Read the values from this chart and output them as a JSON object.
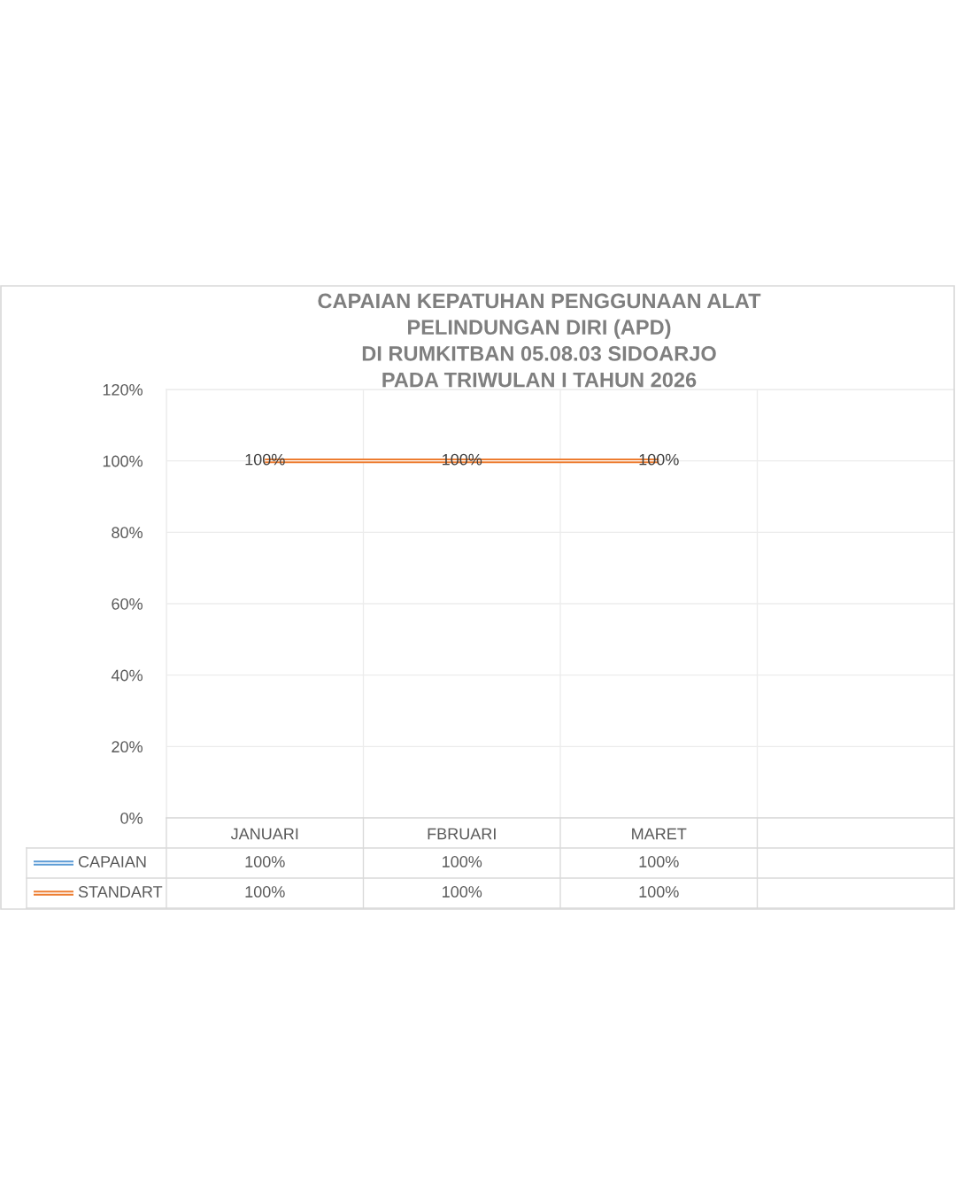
{
  "chart_data": {
    "type": "line",
    "title": "CAPAIAN KEPATUHAN PENGGUNAAN ALAT\nPELINDUNGAN DIRI (APD)\nDI RUMKITBAN 05.08.03 SIDOARJO\nPADA TRIWULAN I TAHUN 2026",
    "categories": [
      "JANUARI",
      "FBRUARI",
      "MARET",
      null
    ],
    "series": [
      {
        "name": "CAPAIAN",
        "color": "#5b9bd5",
        "values": [
          null,
          null,
          null,
          null
        ],
        "value_labels": [
          "100%",
          "100%",
          "100%",
          null
        ]
      },
      {
        "name": "STANDART",
        "color": "#ed7d31",
        "values": [
          100,
          100,
          100,
          null
        ],
        "value_labels": [
          "100%",
          "100%",
          "100%",
          null
        ],
        "data_labels": true
      }
    ],
    "ylim": [
      0,
      120
    ],
    "yticks": [
      {
        "value": 0,
        "label": "0%"
      },
      {
        "value": 20,
        "label": "20%"
      },
      {
        "value": 40,
        "label": "40%"
      },
      {
        "value": 60,
        "label": "60%"
      },
      {
        "value": 80,
        "label": "80%"
      },
      {
        "value": 100,
        "label": "100%"
      },
      {
        "value": 120,
        "label": "120%"
      }
    ],
    "grid": true,
    "legend": "bottom"
  }
}
